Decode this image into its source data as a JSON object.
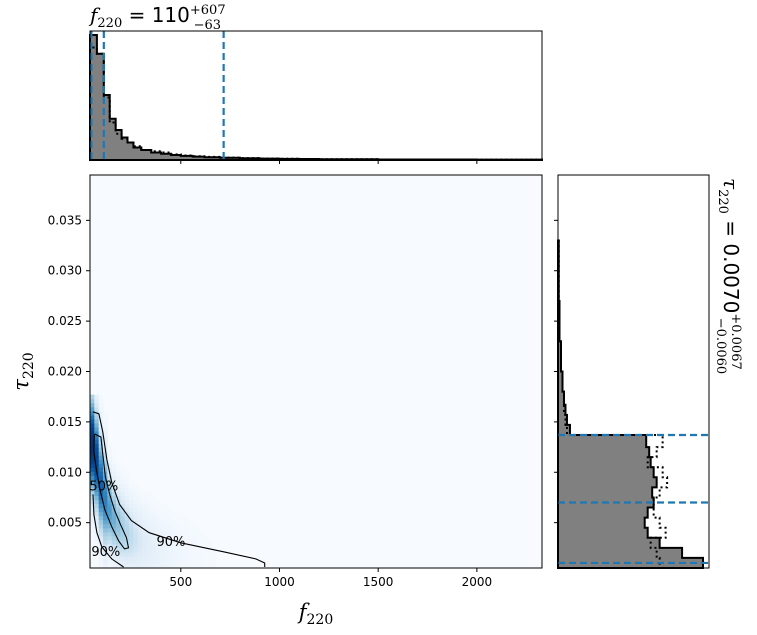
{
  "chart_data": {
    "type": "corner",
    "top_title": {
      "base": "f",
      "sub": "220",
      "value": " = 110",
      "sup": "+607",
      "low": "−63"
    },
    "right_title": {
      "base": "τ",
      "sub": "220",
      "value": " = 0.0070",
      "sup": "+0.0067",
      "low": "−0.0060"
    },
    "joint": {
      "type": "heatmap",
      "xlabel": {
        "base": "f",
        "sub": "220"
      },
      "ylabel": {
        "base": "τ",
        "sub": "220"
      },
      "xlim": [
        40,
        2330
      ],
      "ylim": [
        0.0005,
        0.0395
      ],
      "xticks": [
        500,
        1000,
        1500,
        2000
      ],
      "xtick_labels": [
        "500",
        "1000",
        "1500",
        "2000"
      ],
      "yticks": [
        0.005,
        0.01,
        0.015,
        0.02,
        0.025,
        0.03,
        0.035
      ],
      "ytick_labels": [
        "0.005",
        "0.010",
        "0.015",
        "0.020",
        "0.025",
        "0.030",
        "0.035"
      ],
      "colormap": [
        "#f7fbff",
        "#deebf7",
        "#9ecae1",
        "#4292c6",
        "#08519c",
        "#08306b"
      ],
      "contours": [
        {
          "label": "50%",
          "points": [
            [
              65,
              0.0138
            ],
            [
              95,
              0.0135
            ],
            [
              105,
              0.0118
            ],
            [
              118,
              0.0095
            ],
            [
              140,
              0.0078
            ],
            [
              165,
              0.0062
            ],
            [
              195,
              0.0048
            ],
            [
              225,
              0.0035
            ],
            [
              235,
              0.0025
            ],
            [
              215,
              0.0024
            ],
            [
              185,
              0.0032
            ],
            [
              150,
              0.0046
            ],
            [
              115,
              0.0063
            ],
            [
              90,
              0.0083
            ],
            [
              72,
              0.0103
            ],
            [
              60,
              0.012
            ],
            [
              62,
              0.0138
            ]
          ]
        },
        {
          "label": "90%",
          "points": [
            [
              55,
              0.016
            ],
            [
              85,
              0.0158
            ],
            [
              105,
              0.014
            ],
            [
              125,
              0.0113
            ],
            [
              150,
              0.009
            ],
            [
              190,
              0.0068
            ],
            [
              250,
              0.0052
            ],
            [
              340,
              0.004
            ],
            [
              500,
              0.003
            ],
            [
              720,
              0.0021
            ],
            [
              880,
              0.0014
            ],
            [
              925,
              0.001
            ],
            [
              925,
              0.0006
            ]
          ]
        },
        {
          "label": "",
          "points": [
            [
              55,
              0.0078
            ],
            [
              60,
              0.0058
            ],
            [
              75,
              0.004
            ],
            [
              100,
              0.0026
            ],
            [
              150,
              0.0014
            ],
            [
              210,
              0.0006
            ]
          ]
        }
      ],
      "contour_labels": [
        {
          "text": "50%",
          "x": 110,
          "y": 0.0082
        },
        {
          "text": "90%",
          "x": 450,
          "y": 0.0027
        },
        {
          "text": "90%",
          "x": 120,
          "y": 0.0017
        }
      ]
    },
    "x_marginal": {
      "type": "histogram",
      "bin_edges": [
        40,
        75,
        110,
        140,
        170,
        200,
        230,
        260,
        300,
        350,
        400,
        450,
        500,
        560,
        620,
        700,
        800,
        900,
        1000,
        1100,
        1200,
        1500,
        2000,
        2330
      ],
      "values": [
        1.0,
        0.85,
        0.52,
        0.33,
        0.24,
        0.18,
        0.14,
        0.1,
        0.08,
        0.06,
        0.05,
        0.04,
        0.033,
        0.027,
        0.022,
        0.018,
        0.014,
        0.011,
        0.009,
        0.008,
        0.006,
        0.004,
        0.003
      ],
      "prior": [
        0.9,
        0.85,
        0.5,
        0.3,
        0.21,
        0.17,
        0.14,
        0.11,
        0.08,
        0.07,
        0.06,
        0.045,
        0.036,
        0.03,
        0.025,
        0.019,
        0.015,
        0.012,
        0.01,
        0.008,
        0.006,
        0.004,
        0.003
      ],
      "quantiles": [
        47,
        110,
        717
      ]
    },
    "y_marginal": {
      "type": "histogram",
      "bin_edges": [
        0.0005,
        0.0015,
        0.0025,
        0.0035,
        0.0045,
        0.0055,
        0.0065,
        0.0075,
        0.0085,
        0.0095,
        0.0105,
        0.0115,
        0.0125,
        0.0137,
        0.0147,
        0.0157,
        0.0167,
        0.018,
        0.02,
        0.023,
        0.027,
        0.033
      ],
      "values": [
        0.97,
        0.83,
        0.68,
        0.6,
        0.58,
        0.6,
        0.64,
        0.63,
        0.66,
        0.64,
        0.62,
        0.61,
        0.59,
        0.08,
        0.06,
        0.05,
        0.04,
        0.03,
        0.02,
        0.01,
        0.005
      ],
      "prior": [
        0.68,
        0.66,
        0.62,
        0.72,
        0.68,
        0.64,
        0.64,
        0.68,
        0.73,
        0.7,
        0.6,
        0.66,
        0.7,
        0.06,
        0.05,
        0.04,
        0.04,
        0.03,
        0.02,
        0.01,
        0.005
      ],
      "quantiles": [
        0.001,
        0.007,
        0.0137
      ]
    },
    "colors": {
      "hist_fill": "#808080",
      "hist_line": "#000000",
      "quantile_line": "#1f77b4",
      "contour_line": "#000000"
    }
  }
}
